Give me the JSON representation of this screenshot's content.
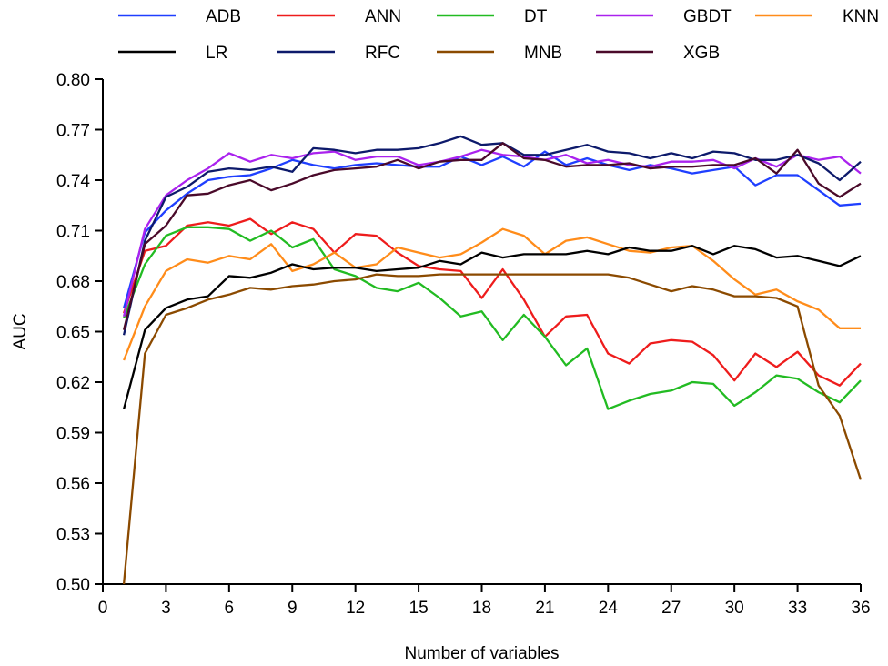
{
  "chart_data": {
    "type": "line",
    "title": "",
    "xlabel": "Number of variables",
    "ylabel": "AUC",
    "xlim": [
      0,
      36
    ],
    "ylim": [
      0.5,
      0.8
    ],
    "xticks": [
      0,
      3,
      6,
      9,
      12,
      15,
      18,
      21,
      24,
      27,
      30,
      33,
      36
    ],
    "yticks": [
      0.5,
      0.53,
      0.56,
      0.59,
      0.62,
      0.65,
      0.68,
      0.71,
      0.74,
      0.77,
      0.8
    ],
    "xtick_labels": [
      "0",
      "3",
      "6",
      "9",
      "12",
      "15",
      "18",
      "21",
      "24",
      "27",
      "30",
      "33",
      "36"
    ],
    "ytick_labels": [
      "0.50",
      "0.53",
      "0.56",
      "0.59",
      "0.62",
      "0.65",
      "0.68",
      "0.71",
      "0.74",
      "0.77",
      "0.80"
    ],
    "legend_position": "top",
    "x": [
      1,
      2,
      3,
      4,
      5,
      6,
      7,
      8,
      9,
      10,
      11,
      12,
      13,
      14,
      15,
      16,
      17,
      18,
      19,
      20,
      21,
      22,
      23,
      24,
      25,
      26,
      27,
      28,
      29,
      30,
      31,
      32,
      33,
      34,
      35,
      36
    ],
    "series": [
      {
        "name": "ADB",
        "color": "#1f3fff",
        "values": [
          0.664,
          0.709,
          0.722,
          0.732,
          0.74,
          0.742,
          0.743,
          0.747,
          0.752,
          0.749,
          0.747,
          0.749,
          0.75,
          0.749,
          0.748,
          0.748,
          0.754,
          0.749,
          0.754,
          0.748,
          0.757,
          0.749,
          0.753,
          0.749,
          0.746,
          0.749,
          0.747,
          0.744,
          0.746,
          0.748,
          0.737,
          0.743,
          0.743,
          0.734,
          0.725,
          0.726
        ]
      },
      {
        "name": "ANN",
        "color": "#ee1c1c",
        "values": [
          0.661,
          0.698,
          0.701,
          0.713,
          0.715,
          0.713,
          0.717,
          0.708,
          0.715,
          0.711,
          0.697,
          0.708,
          0.707,
          0.697,
          0.689,
          0.687,
          0.686,
          0.67,
          0.687,
          0.669,
          0.647,
          0.659,
          0.66,
          0.637,
          0.631,
          0.643,
          0.645,
          0.644,
          0.636,
          0.621,
          0.637,
          0.629,
          0.638,
          0.624,
          0.618,
          0.631
        ]
      },
      {
        "name": "DT",
        "color": "#22bb22",
        "values": [
          0.658,
          0.69,
          0.707,
          0.712,
          0.712,
          0.711,
          0.704,
          0.71,
          0.7,
          0.705,
          0.687,
          0.683,
          0.676,
          0.674,
          0.679,
          0.67,
          0.659,
          0.662,
          0.645,
          0.66,
          0.647,
          0.63,
          0.64,
          0.604,
          0.609,
          0.613,
          0.615,
          0.62,
          0.619,
          0.606,
          0.614,
          0.624,
          0.622,
          0.614,
          0.608,
          0.621
        ]
      },
      {
        "name": "GBDT",
        "color": "#aa22ee",
        "values": [
          0.659,
          0.711,
          0.731,
          0.74,
          0.747,
          0.756,
          0.751,
          0.755,
          0.753,
          0.756,
          0.757,
          0.752,
          0.754,
          0.754,
          0.749,
          0.751,
          0.754,
          0.758,
          0.755,
          0.754,
          0.752,
          0.755,
          0.75,
          0.752,
          0.749,
          0.748,
          0.751,
          0.751,
          0.752,
          0.747,
          0.753,
          0.748,
          0.755,
          0.752,
          0.754,
          0.744
        ]
      },
      {
        "name": "KNN",
        "color": "#ff8c1a",
        "values": [
          0.633,
          0.665,
          0.686,
          0.693,
          0.691,
          0.695,
          0.693,
          0.702,
          0.686,
          0.69,
          0.697,
          0.688,
          0.69,
          0.7,
          0.697,
          0.694,
          0.696,
          0.703,
          0.711,
          0.707,
          0.696,
          0.704,
          0.706,
          0.702,
          0.698,
          0.697,
          0.7,
          0.701,
          0.692,
          0.681,
          0.672,
          0.675,
          0.668,
          0.663,
          0.652,
          0.652
        ]
      },
      {
        "name": "LR",
        "color": "#000000",
        "values": [
          0.604,
          0.651,
          0.664,
          0.669,
          0.671,
          0.683,
          0.682,
          0.685,
          0.69,
          0.687,
          0.688,
          0.688,
          0.686,
          0.687,
          0.688,
          0.692,
          0.69,
          0.697,
          0.694,
          0.696,
          0.696,
          0.696,
          0.698,
          0.696,
          0.7,
          0.698,
          0.698,
          0.701,
          0.696,
          0.701,
          0.699,
          0.694,
          0.695,
          0.692,
          0.689,
          0.695
        ]
      },
      {
        "name": "RFC",
        "color": "#0d1a6b",
        "values": [
          0.648,
          0.704,
          0.73,
          0.736,
          0.745,
          0.747,
          0.746,
          0.748,
          0.745,
          0.759,
          0.758,
          0.756,
          0.758,
          0.758,
          0.759,
          0.762,
          0.766,
          0.761,
          0.762,
          0.755,
          0.755,
          0.758,
          0.761,
          0.757,
          0.756,
          0.753,
          0.756,
          0.753,
          0.757,
          0.756,
          0.752,
          0.752,
          0.755,
          0.75,
          0.74,
          0.751
        ]
      },
      {
        "name": "MNB",
        "color": "#8b4a00",
        "values": [
          0.5,
          0.637,
          0.66,
          0.664,
          0.669,
          0.672,
          0.676,
          0.675,
          0.677,
          0.678,
          0.68,
          0.681,
          0.684,
          0.683,
          0.683,
          0.684,
          0.684,
          0.684,
          0.684,
          0.684,
          0.684,
          0.684,
          0.684,
          0.684,
          0.682,
          0.678,
          0.674,
          0.677,
          0.675,
          0.671,
          0.671,
          0.67,
          0.665,
          0.618,
          0.6,
          0.562
        ]
      },
      {
        "name": "XGB",
        "color": "#4a0a2a",
        "values": [
          0.651,
          0.702,
          0.713,
          0.731,
          0.732,
          0.737,
          0.74,
          0.734,
          0.738,
          0.743,
          0.746,
          0.747,
          0.748,
          0.752,
          0.747,
          0.751,
          0.752,
          0.752,
          0.762,
          0.753,
          0.752,
          0.748,
          0.749,
          0.749,
          0.75,
          0.747,
          0.748,
          0.748,
          0.749,
          0.749,
          0.753,
          0.744,
          0.758,
          0.738,
          0.73,
          0.738
        ]
      }
    ]
  }
}
